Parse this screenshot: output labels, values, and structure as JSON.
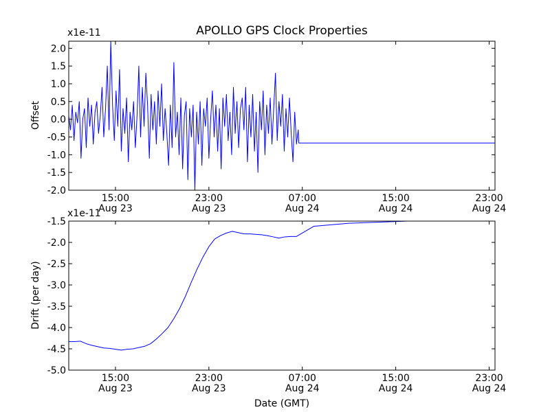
{
  "figure": {
    "title": "APOLLO GPS Clock Properties"
  },
  "chart_data": [
    {
      "type": "line",
      "name": "offset",
      "ylabel": "Offset",
      "xlabel": "",
      "y_scale_label": "x1e-11",
      "x_range_hours": [
        11.0,
        47.5
      ],
      "ylim": [
        -2.0,
        2.2
      ],
      "yticks": [
        -2.0,
        -1.5,
        -1.0,
        -0.5,
        0.0,
        0.5,
        1.0,
        1.5,
        2.0
      ],
      "ytick_labels": [
        "-2.0",
        "-1.5",
        "-1.0",
        "-0.5",
        "0.0",
        "0.5",
        "1.0",
        "1.5",
        "2.0"
      ],
      "xticks_hours": [
        15,
        23,
        31,
        39,
        47
      ],
      "xtick_labels": [
        {
          "time": "15:00",
          "date": "Aug 23"
        },
        {
          "time": "23:00",
          "date": "Aug 23"
        },
        {
          "time": "07:00",
          "date": "Aug 24"
        },
        {
          "time": "15:00",
          "date": "Aug 24"
        },
        {
          "time": "23:00",
          "date": "Aug 24"
        }
      ],
      "color": "#0000ff",
      "series": [
        {
          "name": "offset",
          "x_hours": [
            11.0,
            11.15,
            11.3,
            11.45,
            11.6,
            11.75,
            11.9,
            12.05,
            12.2,
            12.35,
            12.5,
            12.65,
            12.8,
            12.95,
            13.1,
            13.25,
            13.4,
            13.55,
            13.7,
            13.85,
            14.0,
            14.15,
            14.3,
            14.45,
            14.6,
            14.75,
            14.9,
            15.05,
            15.2,
            15.35,
            15.5,
            15.65,
            15.8,
            15.95,
            16.1,
            16.25,
            16.4,
            16.55,
            16.7,
            16.85,
            17.0,
            17.15,
            17.3,
            17.45,
            17.6,
            17.75,
            17.9,
            18.05,
            18.2,
            18.35,
            18.5,
            18.65,
            18.8,
            18.95,
            19.1,
            19.25,
            19.4,
            19.55,
            19.7,
            19.85,
            20.0,
            20.15,
            20.3,
            20.45,
            20.6,
            20.75,
            20.9,
            21.05,
            21.2,
            21.35,
            21.5,
            21.65,
            21.8,
            21.95,
            22.1,
            22.25,
            22.4,
            22.55,
            22.7,
            22.85,
            23.0,
            23.15,
            23.3,
            23.45,
            23.6,
            23.75,
            23.9,
            24.05,
            24.2,
            24.35,
            24.5,
            24.65,
            24.8,
            24.95,
            25.1,
            25.25,
            25.4,
            25.55,
            25.7,
            25.85,
            26.0,
            26.15,
            26.3,
            26.45,
            26.6,
            26.75,
            26.9,
            27.05,
            27.2,
            27.35,
            27.5,
            27.65,
            27.8,
            27.95,
            28.1,
            28.25,
            28.4,
            28.55,
            28.7,
            28.85,
            29.0,
            29.15,
            29.3,
            29.45,
            29.6,
            29.75,
            29.9,
            30.05,
            30.2,
            30.35,
            30.5,
            30.65,
            30.7,
            47.5
          ],
          "values": [
            0.1,
            -0.3,
            0.4,
            -0.6,
            0.2,
            -0.1,
            0.5,
            -1.1,
            0.0,
            0.3,
            -0.8,
            0.6,
            -0.2,
            0.4,
            -0.7,
            0.2,
            0.5,
            -0.4,
            0.1,
            0.9,
            -0.5,
            0.3,
            1.5,
            -0.3,
            2.2,
            0.4,
            -0.6,
            0.8,
            -0.2,
            1.4,
            -0.9,
            0.3,
            -0.4,
            0.6,
            -1.2,
            0.2,
            -0.3,
            0.5,
            -0.8,
            0.1,
            1.5,
            -0.5,
            0.9,
            -0.2,
            1.3,
            0.4,
            -1.1,
            0.7,
            -0.3,
            0.5,
            -0.7,
            0.8,
            -0.2,
            1.0,
            -0.6,
            0.3,
            -0.4,
            -1.3,
            0.4,
            -0.8,
            1.6,
            -0.5,
            0.2,
            -1.0,
            0.6,
            -1.4,
            0.1,
            0.5,
            -1.7,
            0.3,
            -0.5,
            0.4,
            -2.0,
            0.2,
            -0.7,
            0.5,
            -1.3,
            0.3,
            -0.2,
            0.6,
            -1.1,
            0.0,
            0.8,
            -0.5,
            0.4,
            -0.9,
            0.3,
            -1.4,
            0.6,
            -0.2,
            0.7,
            -0.6,
            0.2,
            -1.0,
            0.9,
            -0.4,
            0.5,
            -0.8,
            0.3,
            0.6,
            -0.3,
            0.9,
            -1.2,
            0.4,
            -0.5,
            0.7,
            -0.9,
            0.2,
            -1.5,
            0.5,
            -0.3,
            0.8,
            -1.0,
            0.4,
            -0.4,
            0.6,
            -0.7,
            0.3,
            1.3,
            -0.6,
            0.5,
            -0.2,
            0.7,
            -0.9,
            0.3,
            -0.5,
            0.6,
            -0.4,
            -1.2,
            0.2,
            -0.7,
            -0.3,
            -0.67,
            -0.67
          ]
        }
      ]
    },
    {
      "type": "line",
      "name": "drift",
      "ylabel": "Drift (per day)",
      "xlabel": "Date (GMT)",
      "y_scale_label": "x1e-11",
      "x_range_hours": [
        11.0,
        47.5
      ],
      "ylim": [
        -5.0,
        -1.5
      ],
      "yticks": [
        -5.0,
        -4.5,
        -4.0,
        -3.5,
        -3.0,
        -2.5,
        -2.0,
        -1.5
      ],
      "ytick_labels": [
        "-5.0",
        "-4.5",
        "-4.0",
        "-3.5",
        "-3.0",
        "-2.5",
        "-2.0",
        "-1.5"
      ],
      "xticks_hours": [
        15,
        23,
        31,
        39,
        47
      ],
      "xtick_labels": [
        {
          "time": "15:00",
          "date": "Aug 23"
        },
        {
          "time": "23:00",
          "date": "Aug 23"
        },
        {
          "time": "07:00",
          "date": "Aug 24"
        },
        {
          "time": "15:00",
          "date": "Aug 24"
        },
        {
          "time": "23:00",
          "date": "Aug 24"
        }
      ],
      "color": "#0000ff",
      "series": [
        {
          "name": "drift",
          "x_hours": [
            11.0,
            11.5,
            12.0,
            12.5,
            13.0,
            13.5,
            14.0,
            14.5,
            15.0,
            15.5,
            16.0,
            16.5,
            17.0,
            17.5,
            18.0,
            18.5,
            19.0,
            19.5,
            20.0,
            20.5,
            21.0,
            21.5,
            22.0,
            22.5,
            23.0,
            23.5,
            24.0,
            24.5,
            25.0,
            25.5,
            26.0,
            26.5,
            27.0,
            27.5,
            28.0,
            28.5,
            29.0,
            29.5,
            30.0,
            30.5,
            31.0,
            32.0,
            35.0,
            40.0,
            47.5
          ],
          "values": [
            -4.33,
            -4.33,
            -4.32,
            -4.38,
            -4.42,
            -4.45,
            -4.48,
            -4.49,
            -4.51,
            -4.53,
            -4.51,
            -4.5,
            -4.47,
            -4.44,
            -4.38,
            -4.27,
            -4.14,
            -4.0,
            -3.79,
            -3.55,
            -3.26,
            -2.93,
            -2.62,
            -2.34,
            -2.1,
            -1.92,
            -1.84,
            -1.78,
            -1.74,
            -1.77,
            -1.8,
            -1.8,
            -1.81,
            -1.82,
            -1.84,
            -1.87,
            -1.9,
            -1.87,
            -1.86,
            -1.86,
            -1.78,
            -1.62,
            -1.55,
            -1.5,
            -1.5
          ]
        }
      ]
    }
  ]
}
